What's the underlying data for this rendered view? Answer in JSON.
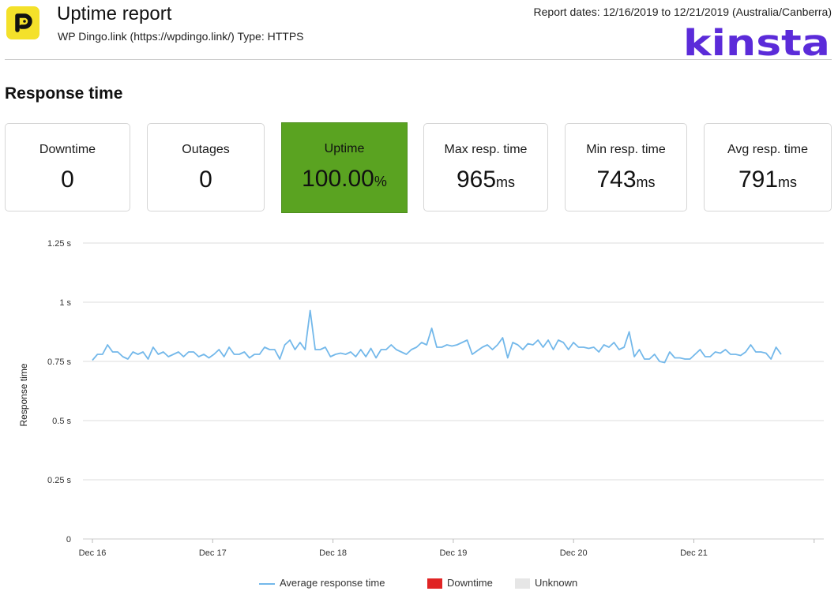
{
  "header": {
    "title": "Uptime report",
    "subtitle": "WP Dingo.link (https://wpdingo.link/) Type: HTTPS",
    "report_dates": "Report dates: 12/16/2019 to 12/21/2019 (Australia/Canberra)",
    "brand": "kinsta",
    "logo_letter": "P"
  },
  "section_title": "Response time",
  "stats": {
    "downtime": {
      "label": "Downtime",
      "value": "0"
    },
    "outages": {
      "label": "Outages",
      "value": "0"
    },
    "uptime": {
      "label": "Uptime",
      "value": "100.00",
      "unit": "%"
    },
    "max": {
      "label": "Max resp. time",
      "value": "965",
      "unit": "ms"
    },
    "min": {
      "label": "Min resp. time",
      "value": "743",
      "unit": "ms"
    },
    "avg": {
      "label": "Avg resp. time",
      "value": "791",
      "unit": "ms"
    }
  },
  "colors": {
    "uptime_card": "#5aa321",
    "line": "#73b8ea",
    "downtime": "#e02424",
    "unknown": "#e6e6e6",
    "brand": "#5b2bd9",
    "logo_bg": "#f4e12a"
  },
  "legend": {
    "avg": "Average response time",
    "downtime": "Downtime",
    "unknown": "Unknown"
  },
  "chart_data": {
    "type": "line",
    "ylabel": "Response time",
    "ylim": [
      0,
      1.25
    ],
    "yticks": [
      "0",
      "0.25 s",
      "0.5 s",
      "0.75 s",
      "1 s",
      "1.25 s"
    ],
    "xticks": [
      "Dec 16",
      "Dec 17",
      "Dec 18",
      "Dec 19",
      "Dec 20",
      "Dec 21"
    ],
    "grid": true,
    "legend_position": "bottom",
    "series": [
      {
        "name": "Average response time",
        "values": [
          0.755,
          0.78,
          0.78,
          0.82,
          0.79,
          0.79,
          0.77,
          0.76,
          0.79,
          0.78,
          0.79,
          0.76,
          0.81,
          0.78,
          0.79,
          0.77,
          0.78,
          0.79,
          0.77,
          0.79,
          0.79,
          0.77,
          0.78,
          0.765,
          0.78,
          0.8,
          0.77,
          0.81,
          0.78,
          0.78,
          0.79,
          0.765,
          0.78,
          0.78,
          0.81,
          0.8,
          0.8,
          0.76,
          0.82,
          0.84,
          0.8,
          0.83,
          0.8,
          0.965,
          0.8,
          0.8,
          0.81,
          0.77,
          0.78,
          0.785,
          0.78,
          0.79,
          0.77,
          0.8,
          0.77,
          0.805,
          0.765,
          0.8,
          0.8,
          0.82,
          0.8,
          0.79,
          0.78,
          0.8,
          0.81,
          0.83,
          0.82,
          0.89,
          0.81,
          0.81,
          0.82,
          0.815,
          0.82,
          0.83,
          0.84,
          0.78,
          0.795,
          0.81,
          0.82,
          0.8,
          0.82,
          0.85,
          0.765,
          0.83,
          0.82,
          0.8,
          0.825,
          0.82,
          0.84,
          0.81,
          0.84,
          0.8,
          0.84,
          0.83,
          0.8,
          0.83,
          0.81,
          0.81,
          0.805,
          0.81,
          0.79,
          0.82,
          0.81,
          0.83,
          0.8,
          0.81,
          0.875,
          0.77,
          0.8,
          0.76,
          0.76,
          0.78,
          0.75,
          0.745,
          0.79,
          0.765,
          0.765,
          0.76,
          0.76,
          0.78,
          0.8,
          0.77,
          0.77,
          0.79,
          0.785,
          0.8,
          0.78,
          0.78,
          0.775,
          0.79,
          0.82,
          0.79,
          0.79,
          0.785,
          0.76,
          0.81,
          0.78
        ]
      }
    ]
  }
}
